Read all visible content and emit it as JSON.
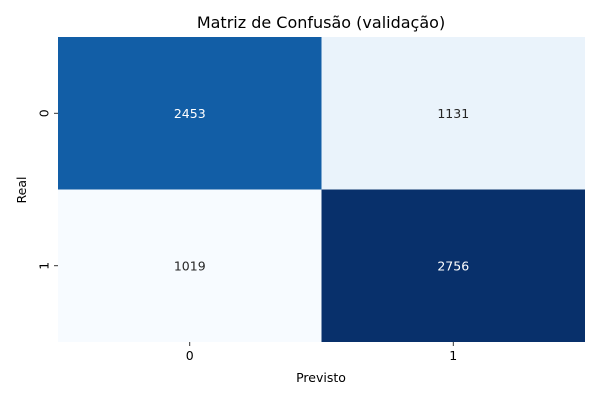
{
  "chart_data": {
    "type": "heatmap",
    "title": "Matriz de Confusão (validação)",
    "xlabel": "Previsto",
    "ylabel": "Real",
    "x_categories": [
      "0",
      "1"
    ],
    "y_categories": [
      "0",
      "1"
    ],
    "values": [
      [
        2453,
        1131
      ],
      [
        1019,
        2756
      ]
    ],
    "colormap": "Blues",
    "color_low": "#f7fbff",
    "color_high": "#08306b",
    "colorbar": false,
    "annotations": true
  }
}
